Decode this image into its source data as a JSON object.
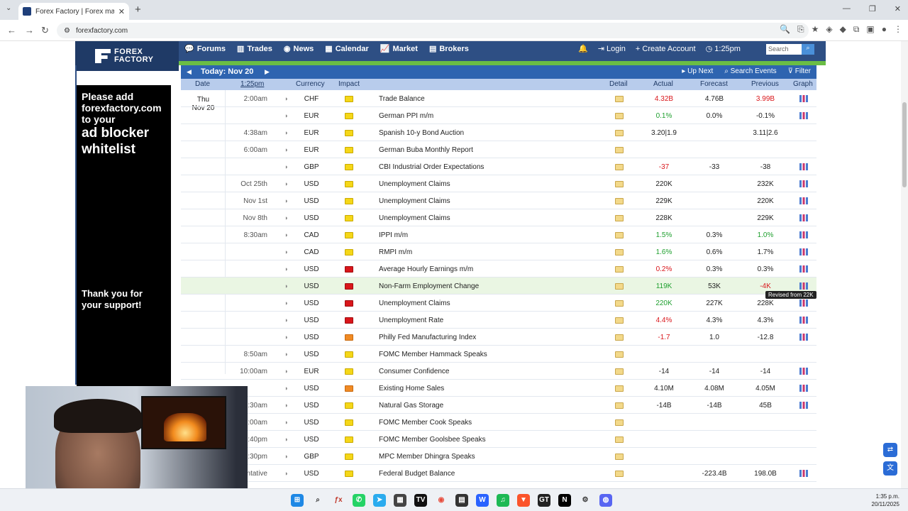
{
  "browser": {
    "tab_title": "Forex Factory | Forex markets fo",
    "url": "forexfactory.com"
  },
  "site": {
    "logo_line1": "FOREX",
    "logo_line2": "FACTORY",
    "nav": [
      "Forums",
      "Trades",
      "News",
      "Calendar",
      "Market",
      "Brokers"
    ],
    "login": "Login",
    "create_account": "Create Account",
    "time": "1:25pm",
    "search_placeholder": "Search"
  },
  "ad": {
    "line1": "Please add",
    "line2": "forexfactory.com",
    "line3": "to your",
    "line4": "ad blocker",
    "line5": "whitelist",
    "thanks1": "Thank you for",
    "thanks2": "your support!"
  },
  "calendar": {
    "today_label": "Today: Nov 20",
    "up_next": "Up Next",
    "search_events": "Search Events",
    "filter": "Filter",
    "headers": {
      "date": "Date",
      "time": "1:25pm",
      "currency": "Currency",
      "impact": "Impact",
      "detail": "Detail",
      "actual": "Actual",
      "forecast": "Forecast",
      "previous": "Previous",
      "graph": "Graph"
    },
    "day_name": "Thu",
    "day_date": "Nov 20",
    "tooltip": "Revised from 22K",
    "rows": [
      {
        "time": "2:00am",
        "cur": "CHF",
        "impact": "low",
        "event": "Trade Balance",
        "actual": "4.32B",
        "act_cls": "neg",
        "forecast": "4.76B",
        "previous": "3.99B",
        "prev_cls": "neg",
        "graph": true
      },
      {
        "time": "",
        "cur": "EUR",
        "impact": "low",
        "event": "German PPI m/m",
        "actual": "0.1%",
        "act_cls": "pos",
        "forecast": "0.0%",
        "previous": "-0.1%",
        "prev_cls": "neu",
        "graph": true
      },
      {
        "time": "4:38am",
        "cur": "EUR",
        "impact": "low",
        "event": "Spanish 10-y Bond Auction",
        "actual": "3.20|1.9",
        "act_cls": "neu",
        "forecast": "",
        "previous": "3.11|2.6",
        "prev_cls": "neu",
        "graph": false
      },
      {
        "time": "6:00am",
        "cur": "EUR",
        "impact": "low",
        "event": "German Buba Monthly Report",
        "actual": "",
        "act_cls": "neu",
        "forecast": "",
        "previous": "",
        "prev_cls": "neu",
        "graph": false
      },
      {
        "time": "",
        "cur": "GBP",
        "impact": "low",
        "event": "CBI Industrial Order Expectations",
        "actual": "-37",
        "act_cls": "neg",
        "forecast": "-33",
        "previous": "-38",
        "prev_cls": "neu",
        "graph": true
      },
      {
        "time": "Oct 25th",
        "cur": "USD",
        "impact": "low",
        "event": "Unemployment Claims",
        "actual": "220K",
        "act_cls": "neu",
        "forecast": "",
        "previous": "232K",
        "prev_cls": "neu",
        "graph": true
      },
      {
        "time": "Nov 1st",
        "cur": "USD",
        "impact": "low",
        "event": "Unemployment Claims",
        "actual": "229K",
        "act_cls": "neu",
        "forecast": "",
        "previous": "220K",
        "prev_cls": "neu",
        "graph": true
      },
      {
        "time": "Nov 8th",
        "cur": "USD",
        "impact": "low",
        "event": "Unemployment Claims",
        "actual": "228K",
        "act_cls": "neu",
        "forecast": "",
        "previous": "229K",
        "prev_cls": "neu",
        "graph": true
      },
      {
        "time": "8:30am",
        "cur": "CAD",
        "impact": "low",
        "event": "IPPI m/m",
        "actual": "1.5%",
        "act_cls": "pos",
        "forecast": "0.3%",
        "previous": "1.0%",
        "prev_cls": "pos",
        "graph": true
      },
      {
        "time": "",
        "cur": "CAD",
        "impact": "low",
        "event": "RMPI m/m",
        "actual": "1.6%",
        "act_cls": "pos",
        "forecast": "0.6%",
        "previous": "1.7%",
        "prev_cls": "neu",
        "graph": true
      },
      {
        "time": "",
        "cur": "USD",
        "impact": "high",
        "event": "Average Hourly Earnings m/m",
        "actual": "0.2%",
        "act_cls": "neg",
        "forecast": "0.3%",
        "previous": "0.3%",
        "prev_cls": "neu",
        "graph": true
      },
      {
        "time": "",
        "cur": "USD",
        "impact": "high",
        "event": "Non-Farm Employment Change",
        "actual": "119K",
        "act_cls": "pos",
        "forecast": "53K",
        "previous": "-4K",
        "prev_cls": "neg",
        "graph": true,
        "highlight": true
      },
      {
        "time": "",
        "cur": "USD",
        "impact": "high",
        "event": "Unemployment Claims",
        "actual": "220K",
        "act_cls": "pos",
        "forecast": "227K",
        "previous": "228K",
        "prev_cls": "neu",
        "graph": true
      },
      {
        "time": "",
        "cur": "USD",
        "impact": "high",
        "event": "Unemployment Rate",
        "actual": "4.4%",
        "act_cls": "neg",
        "forecast": "4.3%",
        "previous": "4.3%",
        "prev_cls": "neu",
        "graph": true
      },
      {
        "time": "",
        "cur": "USD",
        "impact": "med",
        "event": "Philly Fed Manufacturing Index",
        "actual": "-1.7",
        "act_cls": "neg",
        "forecast": "1.0",
        "previous": "-12.8",
        "prev_cls": "neu",
        "graph": true
      },
      {
        "time": "8:50am",
        "cur": "USD",
        "impact": "low",
        "event": "FOMC Member Hammack Speaks",
        "actual": "",
        "act_cls": "neu",
        "forecast": "",
        "previous": "",
        "prev_cls": "neu",
        "graph": false
      },
      {
        "time": "10:00am",
        "cur": "EUR",
        "impact": "low",
        "event": "Consumer Confidence",
        "actual": "-14",
        "act_cls": "neu",
        "forecast": "-14",
        "previous": "-14",
        "prev_cls": "neu",
        "graph": true
      },
      {
        "time": "",
        "cur": "USD",
        "impact": "med",
        "event": "Existing Home Sales",
        "actual": "4.10M",
        "act_cls": "neu",
        "forecast": "4.08M",
        "previous": "4.05M",
        "prev_cls": "neu",
        "graph": true
      },
      {
        "time": "10:30am",
        "cur": "USD",
        "impact": "low",
        "event": "Natural Gas Storage",
        "actual": "-14B",
        "act_cls": "neu",
        "forecast": "-14B",
        "previous": "45B",
        "prev_cls": "neu",
        "graph": true
      },
      {
        "time": "11:00am",
        "cur": "USD",
        "impact": "low",
        "event": "FOMC Member Cook Speaks",
        "actual": "",
        "act_cls": "neu",
        "forecast": "",
        "previous": "",
        "prev_cls": "neu",
        "graph": false
      },
      {
        "time": "12:40pm",
        "cur": "USD",
        "impact": "low",
        "event": "FOMC Member Goolsbee Speaks",
        "actual": "",
        "act_cls": "neu",
        "forecast": "",
        "previous": "",
        "prev_cls": "neu",
        "graph": false
      },
      {
        "time": "1:30pm",
        "cur": "GBP",
        "impact": "low",
        "event": "MPC Member Dhingra Speaks",
        "actual": "",
        "act_cls": "neu",
        "forecast": "",
        "previous": "",
        "prev_cls": "neu",
        "graph": false
      },
      {
        "time": "Tentative",
        "cur": "USD",
        "impact": "low",
        "event": "Federal Budget Balance",
        "actual": "",
        "act_cls": "neu",
        "forecast": "-223.4B",
        "previous": "198.0B",
        "prev_cls": "neu",
        "graph": true
      }
    ]
  },
  "taskbar": {
    "time": "1:35 p.m.",
    "date": "20/11/2025"
  }
}
